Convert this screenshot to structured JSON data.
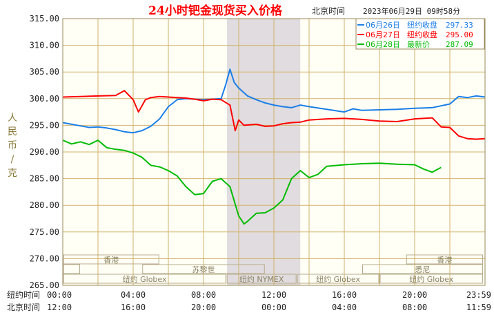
{
  "colors": {
    "plot_bg": "#fffff6",
    "grid": "#d2b26a",
    "shade": "#e0dcdf",
    "axis_text": "#222222",
    "title": "#ff0000",
    "series_blue": "#1a7ee8",
    "series_red": "#ff0000",
    "series_green": "#00bb00",
    "ylabel": "#8a7b3b",
    "session_text": "#8a8060"
  },
  "header": {
    "title": "24小时钯金现货买入价格",
    "tz_label": "北京时间",
    "timestamp": "2023年06月29日 09时58分"
  },
  "legend": [
    {
      "date": "06月26日",
      "label": "纽约收盘",
      "value": "297.33",
      "color": "#1a7ee8"
    },
    {
      "date": "06月27日",
      "label": "纽约收盘",
      "value": "295.00",
      "color": "#ff0000"
    },
    {
      "date": "06月28日",
      "label": "最新价",
      "value": "287.09",
      "color": "#00bb00"
    }
  ],
  "y_axis": {
    "label_chars": [
      "人",
      "民",
      "币",
      "/",
      "克"
    ]
  },
  "x_axis": {
    "row_labels": [
      "纽约时间",
      "北京时间"
    ],
    "ny_ticks": [
      "00:00",
      "04:00",
      "08:00",
      "12:00",
      "16:00",
      "20:00",
      "23:59"
    ],
    "bj_ticks": [
      "12:00",
      "16:00",
      "20:00",
      "00:00",
      "04:00",
      "08:00",
      "11:59"
    ]
  },
  "sessions": [
    "香港",
    "香港",
    "苏黎世",
    "悉尼",
    "纽约 Globex",
    "纽约 NYMEX",
    "纽约 Globex",
    "纽约 Globex"
  ],
  "chart_data": {
    "type": "line",
    "title": "24小时钯金现货买入价格",
    "ylabel": "人民币/克",
    "ylim": [
      265,
      315
    ],
    "yticks": [
      "265.00",
      "270.00",
      "275.00",
      "280.00",
      "285.00",
      "290.00",
      "295.00",
      "300.00",
      "305.00",
      "310.00",
      "315.00"
    ],
    "xlim": [
      0,
      24
    ],
    "shaded_range_hours": [
      9.33,
      13.5
    ],
    "series": [
      {
        "name": "06月26日",
        "color": "#1a7ee8",
        "x": [
          0,
          0.5,
          1,
          1.5,
          2,
          2.5,
          3,
          3.5,
          4,
          4.5,
          5,
          5.5,
          6,
          6.5,
          7,
          7.5,
          8,
          8.5,
          9,
          9.25,
          9.5,
          9.75,
          10,
          10.5,
          11,
          11.5,
          12,
          12.5,
          13,
          13.5,
          14,
          15,
          16,
          16.5,
          17,
          18,
          19,
          20,
          21,
          22,
          22.5,
          23,
          23.5,
          24
        ],
        "y": [
          295.5,
          295.2,
          294.9,
          294.6,
          294.7,
          294.5,
          294.2,
          293.8,
          293.6,
          294.0,
          294.8,
          296.2,
          298.5,
          299.8,
          300.0,
          299.9,
          299.8,
          299.9,
          300.0,
          302.5,
          305.5,
          303.0,
          302.0,
          300.5,
          299.8,
          299.2,
          298.8,
          298.5,
          298.3,
          298.8,
          298.5,
          298.0,
          297.5,
          298.1,
          297.8,
          297.9,
          298.0,
          298.2,
          298.3,
          299.0,
          300.4,
          300.2,
          300.5,
          300.3
        ]
      },
      {
        "name": "06月27日",
        "color": "#ff0000",
        "x": [
          0,
          1,
          2,
          3,
          3.5,
          4,
          4.3,
          4.7,
          5,
          5.5,
          6,
          7,
          7.5,
          8,
          8.5,
          9,
          9.5,
          9.8,
          10,
          10.3,
          11,
          11.5,
          12,
          12.5,
          13,
          13.5,
          14,
          15,
          16,
          17,
          18,
          19,
          20,
          21,
          21.5,
          22,
          22.5,
          23,
          23.5,
          24
        ],
        "y": [
          300.3,
          300.4,
          300.5,
          300.6,
          301.5,
          299.8,
          297.5,
          299.8,
          300.2,
          300.4,
          300.3,
          300.1,
          299.9,
          299.6,
          299.9,
          299.8,
          298.8,
          294.0,
          296.0,
          295.0,
          295.2,
          294.8,
          294.9,
          295.3,
          295.5,
          295.6,
          296.0,
          296.2,
          296.3,
          296.1,
          295.8,
          295.7,
          296.2,
          296.4,
          294.7,
          294.6,
          293.0,
          292.5,
          292.4,
          292.5
        ]
      },
      {
        "name": "06月28日",
        "color": "#00bb00",
        "x": [
          0,
          0.5,
          1,
          1.5,
          2,
          2.5,
          3,
          3.5,
          4,
          4.5,
          5,
          5.5,
          6,
          6.5,
          7,
          7.5,
          8,
          8.5,
          9,
          9.5,
          10,
          10.3,
          10.5,
          11,
          11.5,
          12,
          12.5,
          13,
          13.5,
          14,
          14.5,
          15,
          16,
          17,
          18,
          19,
          20,
          20.5,
          21,
          21.5
        ],
        "y": [
          292.2,
          291.5,
          291.9,
          291.4,
          292.2,
          290.8,
          290.5,
          290.3,
          289.8,
          289.0,
          287.5,
          287.2,
          286.5,
          285.5,
          283.5,
          282.0,
          282.2,
          284.5,
          285.0,
          283.5,
          278.0,
          276.5,
          277.0,
          278.5,
          278.6,
          279.5,
          281.0,
          285.0,
          286.5,
          285.2,
          285.8,
          287.3,
          287.6,
          287.8,
          287.9,
          287.7,
          287.6,
          286.8,
          286.2,
          287.1
        ]
      }
    ]
  }
}
